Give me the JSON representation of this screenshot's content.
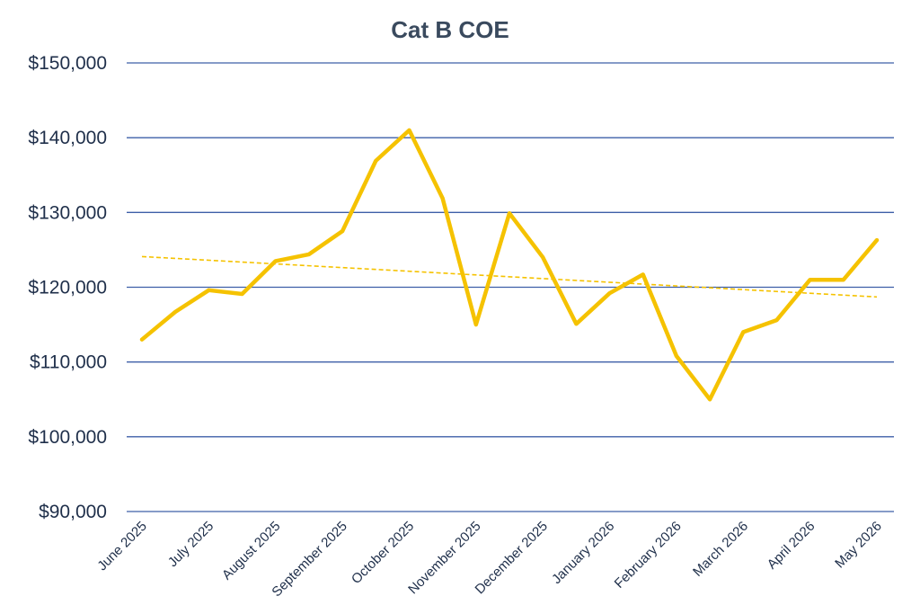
{
  "chart_data": {
    "type": "line",
    "title": "Cat B COE",
    "xlabel": "",
    "ylabel": "",
    "ylim": [
      90000,
      150000
    ],
    "yticks": [
      90000,
      100000,
      110000,
      120000,
      130000,
      140000,
      150000
    ],
    "ytick_labels": [
      "$90,000",
      "$100,000",
      "$110,000",
      "$120,000",
      "$130,000",
      "$140,000",
      "$150,000"
    ],
    "grid": true,
    "legend": "none",
    "x_labels": [
      "June 2025",
      "July 2025",
      "August 2025",
      "September 2025",
      "October 2025",
      "November 2025",
      "December 2025",
      "January 2026",
      "February 2026",
      "March 2026",
      "April 2026",
      "May 2026"
    ],
    "series": [
      {
        "values": [
          113000,
          116700,
          119600,
          119100,
          123500,
          124400,
          127500,
          136900,
          141000,
          131900,
          115000,
          129900,
          124000,
          115100,
          119200,
          121700,
          110800,
          105000,
          114000,
          115600,
          121000,
          121000,
          126300
        ],
        "color": "#f5c200",
        "style": "solid"
      }
    ],
    "trendline": {
      "type": "linear",
      "start": 124100,
      "end": 118700,
      "color": "#f5c200",
      "style": "dashed"
    },
    "colors": {
      "grid": "#3e5fa8",
      "line": "#f5c200",
      "title": "#3a4a5e",
      "ticks": "#1f2f4a"
    }
  }
}
